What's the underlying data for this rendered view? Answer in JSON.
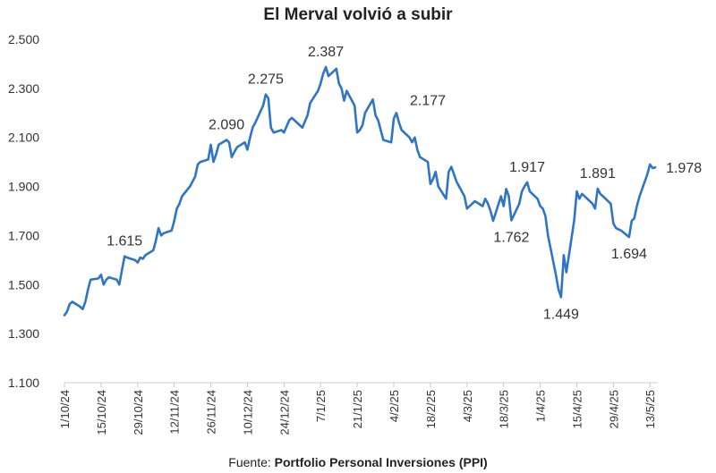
{
  "chart_data": {
    "type": "line",
    "title": "El Merval volvió a subir",
    "source_prefix": "Fuente:",
    "source_name": "Portfolio Personal Inversiones (PPI)",
    "ylim": [
      1100,
      2500
    ],
    "y_ticks": [
      {
        "value": 1100,
        "label": "1.100"
      },
      {
        "value": 1300,
        "label": "1.300"
      },
      {
        "value": 1500,
        "label": "1.500"
      },
      {
        "value": 1700,
        "label": "1.700"
      },
      {
        "value": 1900,
        "label": "1.900"
      },
      {
        "value": 2100,
        "label": "2.100"
      },
      {
        "value": 2300,
        "label": "2.300"
      },
      {
        "value": 2500,
        "label": "2.500"
      }
    ],
    "x_ticks": [
      "1/10/24",
      "15/10/24",
      "29/10/24",
      "12/11/24",
      "26/11/24",
      "10/12/24",
      "24/12/24",
      "7/1/25",
      "21/1/25",
      "4/2/25",
      "18/2/25",
      "4/3/25",
      "18/3/25",
      "1/4/25",
      "15/4/25",
      "29/4/25",
      "13/5/25"
    ],
    "x_range": [
      "2024-10-01",
      "2025-05-16"
    ],
    "grid": false,
    "line_color": "#2e75c6",
    "series": [
      {
        "points": [
          [
            "2024-10-01",
            1375
          ],
          [
            "2024-10-02",
            1390
          ],
          [
            "2024-10-03",
            1420
          ],
          [
            "2024-10-04",
            1430
          ],
          [
            "2024-10-07",
            1410
          ],
          [
            "2024-10-08",
            1400
          ],
          [
            "2024-10-09",
            1430
          ],
          [
            "2024-10-10",
            1480
          ],
          [
            "2024-10-11",
            1520
          ],
          [
            "2024-10-14",
            1525
          ],
          [
            "2024-10-15",
            1540
          ],
          [
            "2024-10-16",
            1500
          ],
          [
            "2024-10-17",
            1520
          ],
          [
            "2024-10-18",
            1530
          ],
          [
            "2024-10-21",
            1520
          ],
          [
            "2024-10-22",
            1500
          ],
          [
            "2024-10-23",
            1560
          ],
          [
            "2024-10-24",
            1615
          ],
          [
            "2024-10-25",
            1610
          ],
          [
            "2024-10-28",
            1600
          ],
          [
            "2024-10-29",
            1590
          ],
          [
            "2024-10-30",
            1610
          ],
          [
            "2024-10-31",
            1605
          ],
          [
            "2024-11-01",
            1620
          ],
          [
            "2024-11-04",
            1640
          ],
          [
            "2024-11-05",
            1680
          ],
          [
            "2024-11-06",
            1730
          ],
          [
            "2024-11-07",
            1700
          ],
          [
            "2024-11-08",
            1710
          ],
          [
            "2024-11-11",
            1720
          ],
          [
            "2024-11-12",
            1760
          ],
          [
            "2024-11-13",
            1810
          ],
          [
            "2024-11-14",
            1830
          ],
          [
            "2024-11-15",
            1860
          ],
          [
            "2024-11-18",
            1900
          ],
          [
            "2024-11-19",
            1920
          ],
          [
            "2024-11-20",
            1940
          ],
          [
            "2024-11-21",
            1990
          ],
          [
            "2024-11-22",
            2000
          ],
          [
            "2024-11-25",
            2010
          ],
          [
            "2024-11-26",
            2070
          ],
          [
            "2024-11-27",
            2000
          ],
          [
            "2024-11-28",
            2030
          ],
          [
            "2024-11-29",
            2070
          ],
          [
            "2024-12-02",
            2090
          ],
          [
            "2024-12-03",
            2080
          ],
          [
            "2024-12-04",
            2020
          ],
          [
            "2024-12-05",
            2040
          ],
          [
            "2024-12-06",
            2060
          ],
          [
            "2024-12-09",
            2080
          ],
          [
            "2024-12-10",
            2050
          ],
          [
            "2024-12-11",
            2100
          ],
          [
            "2024-12-12",
            2140
          ],
          [
            "2024-12-13",
            2160
          ],
          [
            "2024-12-16",
            2230
          ],
          [
            "2024-12-17",
            2275
          ],
          [
            "2024-12-18",
            2260
          ],
          [
            "2024-12-19",
            2140
          ],
          [
            "2024-12-20",
            2120
          ],
          [
            "2024-12-23",
            2130
          ],
          [
            "2024-12-24",
            2120
          ],
          [
            "2024-12-26",
            2170
          ],
          [
            "2024-12-27",
            2180
          ],
          [
            "2024-12-30",
            2150
          ],
          [
            "2024-12-31",
            2140
          ],
          [
            "2025-01-02",
            2190
          ],
          [
            "2025-01-03",
            2240
          ],
          [
            "2025-01-06",
            2290
          ],
          [
            "2025-01-07",
            2320
          ],
          [
            "2025-01-08",
            2360
          ],
          [
            "2025-01-09",
            2387
          ],
          [
            "2025-01-10",
            2350
          ],
          [
            "2025-01-13",
            2380
          ],
          [
            "2025-01-14",
            2320
          ],
          [
            "2025-01-15",
            2300
          ],
          [
            "2025-01-16",
            2250
          ],
          [
            "2025-01-17",
            2290
          ],
          [
            "2025-01-20",
            2230
          ],
          [
            "2025-01-21",
            2120
          ],
          [
            "2025-01-22",
            2130
          ],
          [
            "2025-01-23",
            2150
          ],
          [
            "2025-01-24",
            2200
          ],
          [
            "2025-01-27",
            2255
          ],
          [
            "2025-01-28",
            2190
          ],
          [
            "2025-01-29",
            2170
          ],
          [
            "2025-01-30",
            2130
          ],
          [
            "2025-01-31",
            2090
          ],
          [
            "2025-02-03",
            2080
          ],
          [
            "2025-02-04",
            2177
          ],
          [
            "2025-02-05",
            2200
          ],
          [
            "2025-02-06",
            2160
          ],
          [
            "2025-02-07",
            2130
          ],
          [
            "2025-02-10",
            2100
          ],
          [
            "2025-02-11",
            2080
          ],
          [
            "2025-02-12",
            2100
          ],
          [
            "2025-02-13",
            2050
          ],
          [
            "2025-02-14",
            2020
          ],
          [
            "2025-02-17",
            2000
          ],
          [
            "2025-02-18",
            1910
          ],
          [
            "2025-02-19",
            1930
          ],
          [
            "2025-02-20",
            1960
          ],
          [
            "2025-02-21",
            1900
          ],
          [
            "2025-02-24",
            1850
          ],
          [
            "2025-02-25",
            1960
          ],
          [
            "2025-02-26",
            1980
          ],
          [
            "2025-02-27",
            1950
          ],
          [
            "2025-02-28",
            1920
          ],
          [
            "2025-03-03",
            1860
          ],
          [
            "2025-03-04",
            1810
          ],
          [
            "2025-03-05",
            1820
          ],
          [
            "2025-03-06",
            1830
          ],
          [
            "2025-03-07",
            1840
          ],
          [
            "2025-03-10",
            1820
          ],
          [
            "2025-03-11",
            1850
          ],
          [
            "2025-03-12",
            1830
          ],
          [
            "2025-03-13",
            1800
          ],
          [
            "2025-03-14",
            1760
          ],
          [
            "2025-03-17",
            1860
          ],
          [
            "2025-03-18",
            1820
          ],
          [
            "2025-03-19",
            1890
          ],
          [
            "2025-03-20",
            1860
          ],
          [
            "2025-03-21",
            1762
          ],
          [
            "2025-03-24",
            1830
          ],
          [
            "2025-03-25",
            1880
          ],
          [
            "2025-03-26",
            1900
          ],
          [
            "2025-03-27",
            1917
          ],
          [
            "2025-03-28",
            1880
          ],
          [
            "2025-03-31",
            1850
          ],
          [
            "2025-04-01",
            1820
          ],
          [
            "2025-04-02",
            1810
          ],
          [
            "2025-04-03",
            1780
          ],
          [
            "2025-04-04",
            1700
          ],
          [
            "2025-04-07",
            1540
          ],
          [
            "2025-04-08",
            1480
          ],
          [
            "2025-04-09",
            1449
          ],
          [
            "2025-04-10",
            1620
          ],
          [
            "2025-04-11",
            1550
          ],
          [
            "2025-04-14",
            1760
          ],
          [
            "2025-04-15",
            1880
          ],
          [
            "2025-04-16",
            1850
          ],
          [
            "2025-04-17",
            1870
          ],
          [
            "2025-04-21",
            1830
          ],
          [
            "2025-04-22",
            1810
          ],
          [
            "2025-04-23",
            1891
          ],
          [
            "2025-04-24",
            1870
          ],
          [
            "2025-04-25",
            1860
          ],
          [
            "2025-04-28",
            1830
          ],
          [
            "2025-04-29",
            1750
          ],
          [
            "2025-04-30",
            1730
          ],
          [
            "2025-05-02",
            1720
          ],
          [
            "2025-05-05",
            1694
          ],
          [
            "2025-05-06",
            1760
          ],
          [
            "2025-05-07",
            1770
          ],
          [
            "2025-05-08",
            1820
          ],
          [
            "2025-05-09",
            1860
          ],
          [
            "2025-05-12",
            1950
          ],
          [
            "2025-05-13",
            1990
          ],
          [
            "2025-05-14",
            1975
          ],
          [
            "2025-05-15",
            1978
          ]
        ]
      }
    ],
    "annotations": [
      {
        "x": "2024-10-24",
        "y": 1615,
        "label": "1.615",
        "pos": "above"
      },
      {
        "x": "2024-12-02",
        "y": 2090,
        "label": "2.090",
        "pos": "above"
      },
      {
        "x": "2024-12-17",
        "y": 2275,
        "label": "2.275",
        "pos": "above"
      },
      {
        "x": "2025-01-09",
        "y": 2387,
        "label": "2.387",
        "pos": "above"
      },
      {
        "x": "2025-02-04",
        "y": 2177,
        "label": "2.177",
        "pos": "above-right"
      },
      {
        "x": "2025-03-21",
        "y": 1762,
        "label": "1.762",
        "pos": "below"
      },
      {
        "x": "2025-03-27",
        "y": 1917,
        "label": "1.917",
        "pos": "above"
      },
      {
        "x": "2025-04-09",
        "y": 1449,
        "label": "1.449",
        "pos": "below"
      },
      {
        "x": "2025-04-23",
        "y": 1891,
        "label": "1.891",
        "pos": "above"
      },
      {
        "x": "2025-05-05",
        "y": 1694,
        "label": "1.694",
        "pos": "below"
      },
      {
        "x": "2025-05-15",
        "y": 1978,
        "label": "1.978",
        "pos": "right"
      }
    ]
  }
}
